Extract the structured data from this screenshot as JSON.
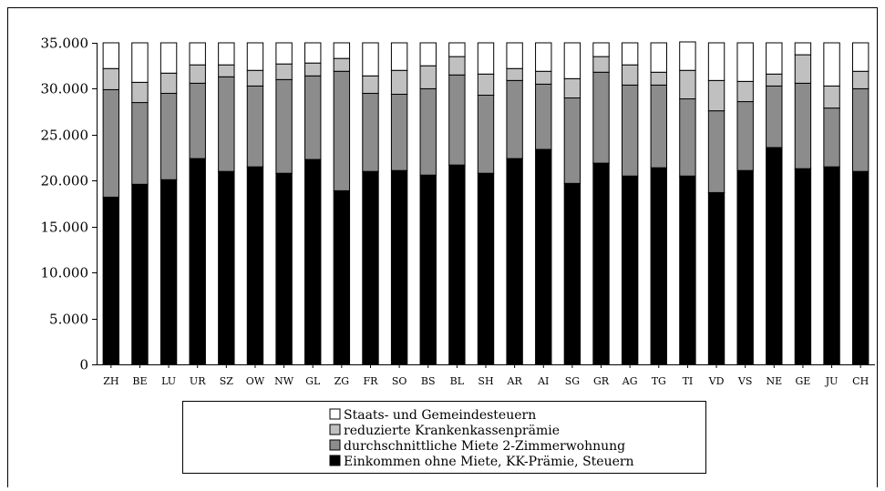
{
  "chart_data": {
    "type": "bar",
    "stacked": true,
    "title": "",
    "xlabel": "",
    "ylabel": "",
    "ylim": [
      0,
      35000
    ],
    "yticks": [
      "0",
      "5.000",
      "10.000",
      "15.000",
      "20.000",
      "25.000",
      "30.000",
      "35.000"
    ],
    "ytick_values": [
      0,
      5000,
      10000,
      15000,
      20000,
      25000,
      30000,
      35000
    ],
    "grid": false,
    "legend_position": "bottom",
    "categories": [
      "ZH",
      "BE",
      "LU",
      "UR",
      "SZ",
      "OW",
      "NW",
      "GL",
      "ZG",
      "FR",
      "SO",
      "BS",
      "BL",
      "SH",
      "AR",
      "AI",
      "SG",
      "GR",
      "AG",
      "TG",
      "TI",
      "VD",
      "VS",
      "NE",
      "GE",
      "JU",
      "CH"
    ],
    "series": [
      {
        "name": "Einkommen ohne Miete, KK-Prämie, Steuern",
        "color": "#000000",
        "values": [
          18200,
          19600,
          20100,
          22400,
          21000,
          21500,
          20800,
          22300,
          18900,
          21000,
          21100,
          20600,
          21700,
          20800,
          22400,
          23400,
          19700,
          21900,
          20500,
          21400,
          20500,
          18700,
          21100,
          23600,
          21300,
          21500,
          21000
        ]
      },
      {
        "name": "durchschnittliche Miete 2-Zimmerwohnung",
        "color": "#8c8c8c",
        "values": [
          11700,
          8900,
          9400,
          8200,
          10300,
          8800,
          10200,
          9100,
          13000,
          8500,
          8300,
          9400,
          9800,
          8500,
          8500,
          7100,
          9300,
          9900,
          9900,
          9000,
          8400,
          8900,
          7500,
          6700,
          9300,
          6400,
          9000
        ]
      },
      {
        "name": "reduzierte Krankenkassenprämie",
        "color": "#c0c0c0",
        "values": [
          2300,
          2200,
          2200,
          2000,
          1300,
          1700,
          1700,
          1400,
          1400,
          1900,
          2600,
          2500,
          2000,
          2300,
          1300,
          1400,
          2100,
          1700,
          2200,
          1400,
          3100,
          3300,
          2200,
          1300,
          3100,
          2400,
          1900
        ]
      },
      {
        "name": "Staats- und Gemeindesteuern",
        "color": "#ffffff",
        "values": [
          2800,
          4300,
          3300,
          2400,
          2400,
          3000,
          2300,
          2200,
          1700,
          3600,
          3000,
          2500,
          1500,
          3400,
          2800,
          3100,
          3900,
          1500,
          2400,
          3200,
          3100,
          4100,
          4200,
          3400,
          1300,
          4700,
          3100
        ]
      }
    ],
    "legend": [
      "Staats- und Gemeindesteuern",
      "reduzierte Krankenkassenprämie",
      "durchschnittliche Miete 2-Zimmerwohnung",
      "Einkommen ohne Miete, KK-Prämie, Steuern"
    ]
  }
}
